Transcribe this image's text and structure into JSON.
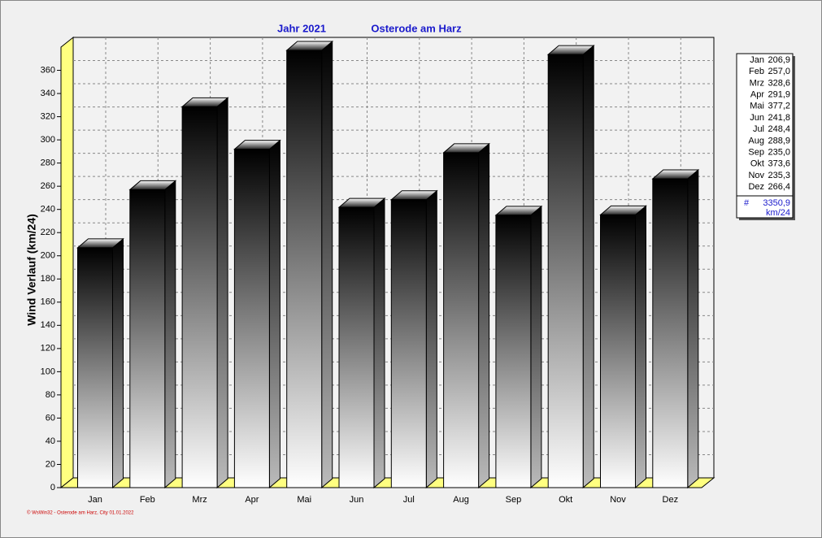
{
  "chart_data": {
    "type": "bar3d",
    "title": "Jahr  2021",
    "subtitle": "Osterode am Harz",
    "y_label": "Wind Verlauf  (km/24)",
    "footer": "© WsWin32 - Osterode am Harz, City  01.01.2022",
    "categories": [
      "Jan",
      "Feb",
      "Mrz",
      "Apr",
      "Mai",
      "Jun",
      "Jul",
      "Aug",
      "Sep",
      "Okt",
      "Nov",
      "Dez"
    ],
    "values": [
      206.9,
      257.0,
      328.6,
      291.9,
      377.2,
      241.8,
      248.4,
      288.9,
      235.0,
      373.6,
      235.3,
      266.4
    ],
    "value_labels": [
      "206,9",
      "257,0",
      "328,6",
      "291,9",
      "377,2",
      "241,8",
      "248,4",
      "288,9",
      "235,0",
      "373,6",
      "235,3",
      "266,4"
    ],
    "total": {
      "value": 3350.9,
      "label": "3350,9"
    },
    "total_symbol": "#",
    "unit": "km/24",
    "ylim": [
      0,
      380
    ],
    "yticks": [
      0,
      20,
      40,
      60,
      80,
      100,
      120,
      140,
      160,
      180,
      200,
      220,
      240,
      260,
      280,
      300,
      320,
      340,
      360
    ],
    "grid": true
  }
}
